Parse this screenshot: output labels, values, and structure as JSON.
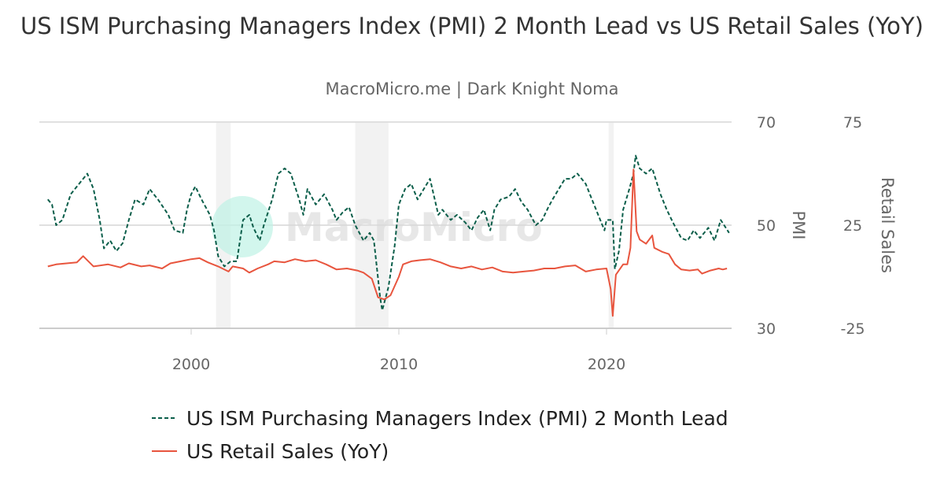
{
  "title": "US ISM Purchasing Managers Index (PMI) 2 Month Lead vs US Retail Sales (YoY)",
  "subtitle": "MacroMicro.me | Dark Knight Noma",
  "watermark": "MacroMicro",
  "chart_data": {
    "type": "line",
    "title": "US ISM Purchasing Managers Index (PMI) 2 Month Lead vs US Retail Sales (YoY)",
    "x_ticks": [
      "2000",
      "2010",
      "2020"
    ],
    "xlim": [
      1992.7,
      2026.0
    ],
    "left_axis": {
      "label": "PMI",
      "ticks": [
        "70",
        "50",
        "30"
      ],
      "ylim": [
        30,
        70
      ]
    },
    "right_axis": {
      "label": "Retail Sales",
      "ticks": [
        "75",
        "25",
        "-25"
      ],
      "ylim": [
        -25,
        75
      ]
    },
    "grid": "horizontal",
    "legend_position": "bottom",
    "recession_bands": [
      [
        2001.2,
        2001.9
      ],
      [
        2007.9,
        2009.5
      ],
      [
        2020.1,
        2020.35
      ]
    ],
    "colors": {
      "pmi": "#0b5e4a",
      "retail": "#e8553e",
      "band": "#f2f2f2"
    },
    "series": [
      {
        "name": "US ISM Purchasing Managers Index (PMI) 2 Month Lead",
        "axis": "left",
        "style": "dashed",
        "points": [
          [
            1993.1,
            55
          ],
          [
            1993.3,
            54
          ],
          [
            1993.5,
            50
          ],
          [
            1993.8,
            51
          ],
          [
            1994.2,
            56
          ],
          [
            1994.7,
            58.5
          ],
          [
            1995.0,
            60
          ],
          [
            1995.3,
            57
          ],
          [
            1995.6,
            51
          ],
          [
            1995.8,
            45.5
          ],
          [
            1996.1,
            47
          ],
          [
            1996.4,
            45
          ],
          [
            1996.7,
            46.5
          ],
          [
            1997.0,
            51
          ],
          [
            1997.3,
            55
          ],
          [
            1997.7,
            54
          ],
          [
            1998.0,
            57
          ],
          [
            1998.4,
            55
          ],
          [
            1998.9,
            52
          ],
          [
            1999.2,
            49
          ],
          [
            1999.6,
            48.5
          ],
          [
            1999.8,
            53
          ],
          [
            2000.0,
            56
          ],
          [
            2000.2,
            57.5
          ],
          [
            2000.5,
            55
          ],
          [
            2000.9,
            52
          ],
          [
            2001.1,
            49
          ],
          [
            2001.3,
            44
          ],
          [
            2001.6,
            42
          ],
          [
            2001.9,
            43
          ],
          [
            2002.2,
            43
          ],
          [
            2002.5,
            51
          ],
          [
            2002.8,
            52
          ],
          [
            2003.0,
            49.5
          ],
          [
            2003.3,
            47
          ],
          [
            2003.5,
            50
          ],
          [
            2003.9,
            55
          ],
          [
            2004.2,
            60
          ],
          [
            2004.5,
            61
          ],
          [
            2004.8,
            60
          ],
          [
            2005.2,
            55
          ],
          [
            2005.4,
            52
          ],
          [
            2005.6,
            57
          ],
          [
            2006.0,
            54
          ],
          [
            2006.4,
            56
          ],
          [
            2006.8,
            53
          ],
          [
            2007.0,
            51
          ],
          [
            2007.3,
            52.5
          ],
          [
            2007.6,
            53.5
          ],
          [
            2007.9,
            50
          ],
          [
            2008.3,
            47
          ],
          [
            2008.6,
            48.5
          ],
          [
            2008.8,
            47
          ],
          [
            2009.1,
            36
          ],
          [
            2009.2,
            33.5
          ],
          [
            2009.5,
            38
          ],
          [
            2009.8,
            46
          ],
          [
            2010.0,
            54
          ],
          [
            2010.3,
            57
          ],
          [
            2010.6,
            58
          ],
          [
            2010.9,
            55
          ],
          [
            2011.2,
            57
          ],
          [
            2011.5,
            59
          ],
          [
            2011.9,
            52
          ],
          [
            2012.1,
            53
          ],
          [
            2012.5,
            51
          ],
          [
            2012.8,
            52
          ],
          [
            2013.2,
            50.5
          ],
          [
            2013.5,
            49
          ],
          [
            2013.8,
            51.5
          ],
          [
            2014.1,
            53
          ],
          [
            2014.4,
            49
          ],
          [
            2014.6,
            53
          ],
          [
            2014.9,
            55
          ],
          [
            2015.3,
            55.5
          ],
          [
            2015.6,
            57
          ],
          [
            2015.9,
            54.5
          ],
          [
            2016.2,
            53
          ],
          [
            2016.6,
            50
          ],
          [
            2016.9,
            51
          ],
          [
            2017.2,
            53.5
          ],
          [
            2017.4,
            55
          ],
          [
            2017.7,
            57
          ],
          [
            2018.0,
            59
          ],
          [
            2018.3,
            59
          ],
          [
            2018.6,
            60
          ],
          [
            2019.0,
            58
          ],
          [
            2019.3,
            55
          ],
          [
            2019.6,
            52
          ],
          [
            2019.9,
            49
          ],
          [
            2020.0,
            51
          ],
          [
            2020.3,
            51
          ],
          [
            2020.4,
            41.5
          ],
          [
            2020.6,
            45
          ],
          [
            2020.8,
            53
          ],
          [
            2021.1,
            57
          ],
          [
            2021.3,
            60
          ],
          [
            2021.4,
            63.5
          ],
          [
            2021.6,
            61
          ],
          [
            2021.9,
            60
          ],
          [
            2022.2,
            61
          ],
          [
            2022.6,
            56
          ],
          [
            2022.9,
            53
          ],
          [
            2023.2,
            50.5
          ],
          [
            2023.6,
            47.5
          ],
          [
            2023.9,
            47
          ],
          [
            2024.2,
            49
          ],
          [
            2024.5,
            47.5
          ],
          [
            2024.9,
            49.5
          ],
          [
            2025.2,
            47
          ],
          [
            2025.5,
            51
          ],
          [
            2025.9,
            48.5
          ]
        ]
      },
      {
        "name": "US Retail Sales (YoY)",
        "axis": "right",
        "style": "solid",
        "points": [
          [
            1993.1,
            5
          ],
          [
            1993.5,
            6
          ],
          [
            1994.0,
            6.5
          ],
          [
            1994.5,
            7
          ],
          [
            1994.8,
            10
          ],
          [
            1995.3,
            5
          ],
          [
            1996.0,
            6
          ],
          [
            1996.6,
            4.5
          ],
          [
            1997.0,
            6.5
          ],
          [
            1997.6,
            5
          ],
          [
            1998.0,
            5.5
          ],
          [
            1998.6,
            4
          ],
          [
            1999.0,
            6.5
          ],
          [
            1999.5,
            7.5
          ],
          [
            2000.0,
            8.5
          ],
          [
            2000.4,
            9
          ],
          [
            2000.8,
            7
          ],
          [
            2001.3,
            5
          ],
          [
            2001.8,
            2.5
          ],
          [
            2002.0,
            5
          ],
          [
            2002.5,
            4
          ],
          [
            2002.8,
            2
          ],
          [
            2003.2,
            4
          ],
          [
            2003.7,
            6
          ],
          [
            2004.0,
            7.5
          ],
          [
            2004.5,
            7
          ],
          [
            2005.0,
            8.5
          ],
          [
            2005.5,
            7.5
          ],
          [
            2006.0,
            8
          ],
          [
            2006.5,
            6
          ],
          [
            2007.0,
            3.5
          ],
          [
            2007.5,
            4
          ],
          [
            2008.0,
            3
          ],
          [
            2008.3,
            2
          ],
          [
            2008.7,
            -1
          ],
          [
            2009.0,
            -10
          ],
          [
            2009.3,
            -11
          ],
          [
            2009.6,
            -9
          ],
          [
            2010.0,
            0
          ],
          [
            2010.2,
            6
          ],
          [
            2010.6,
            7.5
          ],
          [
            2011.0,
            8
          ],
          [
            2011.5,
            8.5
          ],
          [
            2012.0,
            7
          ],
          [
            2012.5,
            5
          ],
          [
            2013.0,
            4
          ],
          [
            2013.5,
            5
          ],
          [
            2014.0,
            3.5
          ],
          [
            2014.5,
            4.5
          ],
          [
            2015.0,
            2.5
          ],
          [
            2015.5,
            2
          ],
          [
            2016.0,
            2.5
          ],
          [
            2016.5,
            3
          ],
          [
            2017.0,
            4
          ],
          [
            2017.5,
            4
          ],
          [
            2018.0,
            5
          ],
          [
            2018.5,
            5.5
          ],
          [
            2019.0,
            2.5
          ],
          [
            2019.5,
            3.5
          ],
          [
            2020.0,
            4
          ],
          [
            2020.2,
            -6
          ],
          [
            2020.3,
            -19
          ],
          [
            2020.45,
            1
          ],
          [
            2020.8,
            6
          ],
          [
            2021.0,
            6
          ],
          [
            2021.15,
            14
          ],
          [
            2021.3,
            52
          ],
          [
            2021.45,
            22
          ],
          [
            2021.6,
            18
          ],
          [
            2021.9,
            16
          ],
          [
            2022.2,
            20
          ],
          [
            2022.3,
            14
          ],
          [
            2022.7,
            12
          ],
          [
            2023.0,
            11
          ],
          [
            2023.3,
            6
          ],
          [
            2023.6,
            3.5
          ],
          [
            2024.0,
            3
          ],
          [
            2024.4,
            3.5
          ],
          [
            2024.6,
            1.5
          ],
          [
            2025.0,
            3
          ],
          [
            2025.4,
            4
          ],
          [
            2025.6,
            3.5
          ],
          [
            2025.8,
            4
          ]
        ]
      }
    ]
  }
}
